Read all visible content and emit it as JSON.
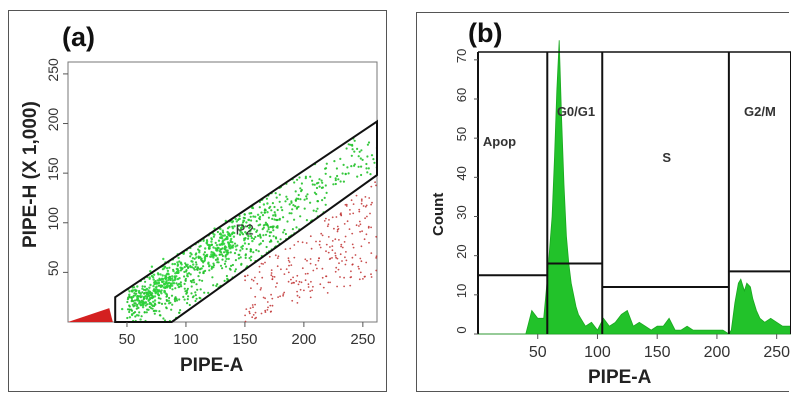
{
  "chart_data": [
    {
      "panel_label": "(a)",
      "type": "scatter",
      "xlabel": "PIPE-A",
      "ylabel": "PIPE-H  (X 1,000)",
      "xlim": [
        0,
        262
      ],
      "ylim": [
        0,
        262
      ],
      "xticks": [
        "50",
        "100",
        "150",
        "200",
        "250"
      ],
      "yticks": [
        "50",
        "100",
        "150",
        "200",
        "250"
      ],
      "gate": {
        "name": "P2",
        "polygon": [
          [
            40,
            25
          ],
          [
            262,
            202
          ],
          [
            262,
            148
          ],
          [
            88,
            0
          ],
          [
            40,
            0
          ]
        ]
      },
      "series": [
        {
          "color": "#22c22a",
          "density": "gated"
        },
        {
          "color": "#c03030",
          "density": "ungated"
        }
      ]
    },
    {
      "panel_label": "(b)",
      "type": "area",
      "xlabel": "PIPE-A",
      "ylabel": "Count",
      "xlim": [
        0,
        262
      ],
      "ylim": [
        0,
        72
      ],
      "xticks": [
        "50",
        "100",
        "150",
        "200",
        "250"
      ],
      "yticks": [
        "0",
        "10",
        "20",
        "30",
        "40",
        "50",
        "60",
        "70"
      ],
      "gates": [
        {
          "name": "Apop",
          "x_range": [
            0,
            58
          ],
          "level": 15
        },
        {
          "name": "G0/G1",
          "x_range": [
            58,
            104
          ],
          "level": 18
        },
        {
          "name": "S",
          "x_range": [
            104,
            210
          ],
          "level": 12
        },
        {
          "name": "G2/M",
          "x_range": [
            210,
            262
          ],
          "level": 16
        }
      ],
      "x": [
        0,
        5,
        10,
        15,
        20,
        25,
        30,
        35,
        40,
        45,
        50,
        55,
        58,
        60,
        62,
        64,
        66,
        68,
        70,
        72,
        74,
        76,
        78,
        80,
        82,
        84,
        86,
        88,
        90,
        95,
        100,
        105,
        110,
        115,
        120,
        125,
        130,
        135,
        140,
        145,
        150,
        155,
        160,
        165,
        170,
        175,
        180,
        185,
        190,
        195,
        200,
        205,
        210,
        212,
        215,
        218,
        220,
        223,
        225,
        228,
        230,
        233,
        236,
        240,
        245,
        250,
        255,
        262
      ],
      "y": [
        0,
        0,
        0,
        0,
        0,
        0,
        0,
        0,
        0,
        6,
        4,
        4,
        14,
        22,
        30,
        45,
        62,
        75,
        55,
        38,
        25,
        18,
        13,
        10,
        7,
        5,
        4,
        3,
        2,
        3,
        1,
        4,
        2,
        3,
        5,
        6,
        2,
        3,
        2,
        1,
        2,
        2,
        4,
        1,
        1,
        2,
        1,
        1,
        1,
        1,
        1,
        1,
        0,
        1,
        8,
        13,
        14,
        11,
        13,
        12,
        9,
        6,
        4,
        3,
        4,
        3,
        2,
        2
      ],
      "fill": "#22c22a"
    }
  ]
}
